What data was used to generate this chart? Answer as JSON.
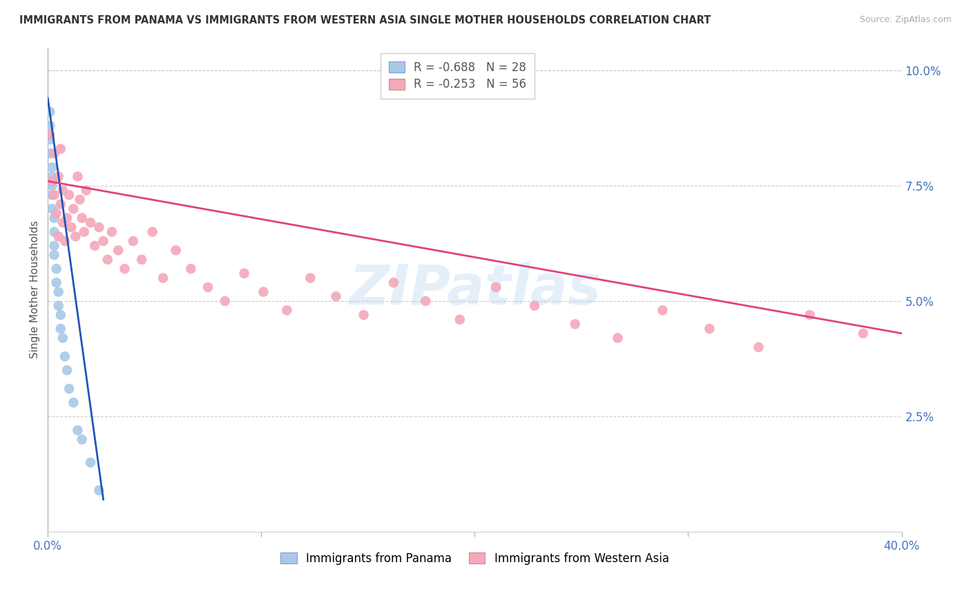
{
  "title": "IMMIGRANTS FROM PANAMA VS IMMIGRANTS FROM WESTERN ASIA SINGLE MOTHER HOUSEHOLDS CORRELATION CHART",
  "source": "Source: ZipAtlas.com",
  "ylabel": "Single Mother Households",
  "right_yticks": [
    "10.0%",
    "7.5%",
    "5.0%",
    "2.5%"
  ],
  "right_ytick_vals": [
    0.1,
    0.075,
    0.05,
    0.025
  ],
  "xlim": [
    0.0,
    0.4
  ],
  "ylim": [
    0.0,
    0.105
  ],
  "legend_r1": "R = -0.688",
  "legend_n1": "N = 28",
  "legend_r2": "R = -0.253",
  "legend_n2": "N = 56",
  "color_panama": "#a8c8e8",
  "color_western_asia": "#f4a8b8",
  "color_line_panama": "#2255bb",
  "color_line_western_asia": "#dd4477",
  "color_axis_labels": "#4472c4",
  "color_right_axis": "#4472c4",
  "watermark": "ZIPatlas",
  "panama_x": [
    0.001,
    0.001,
    0.001,
    0.001,
    0.002,
    0.002,
    0.002,
    0.002,
    0.002,
    0.003,
    0.003,
    0.003,
    0.003,
    0.004,
    0.004,
    0.005,
    0.005,
    0.006,
    0.006,
    0.007,
    0.008,
    0.009,
    0.01,
    0.012,
    0.014,
    0.016,
    0.02,
    0.024
  ],
  "panama_y": [
    0.091,
    0.088,
    0.085,
    0.082,
    0.079,
    0.077,
    0.075,
    0.073,
    0.07,
    0.068,
    0.065,
    0.062,
    0.06,
    0.057,
    0.054,
    0.052,
    0.049,
    0.047,
    0.044,
    0.042,
    0.038,
    0.035,
    0.031,
    0.028,
    0.022,
    0.02,
    0.015,
    0.009
  ],
  "wa_x": [
    0.001,
    0.002,
    0.003,
    0.003,
    0.004,
    0.005,
    0.005,
    0.006,
    0.006,
    0.007,
    0.007,
    0.008,
    0.009,
    0.01,
    0.011,
    0.012,
    0.013,
    0.014,
    0.015,
    0.016,
    0.017,
    0.018,
    0.02,
    0.022,
    0.024,
    0.026,
    0.028,
    0.03,
    0.033,
    0.036,
    0.04,
    0.044,
    0.049,
    0.054,
    0.06,
    0.067,
    0.075,
    0.083,
    0.092,
    0.101,
    0.112,
    0.123,
    0.135,
    0.148,
    0.162,
    0.177,
    0.193,
    0.21,
    0.228,
    0.247,
    0.267,
    0.288,
    0.31,
    0.333,
    0.357,
    0.382
  ],
  "wa_y": [
    0.086,
    0.076,
    0.082,
    0.073,
    0.069,
    0.077,
    0.064,
    0.083,
    0.071,
    0.074,
    0.067,
    0.063,
    0.068,
    0.073,
    0.066,
    0.07,
    0.064,
    0.077,
    0.072,
    0.068,
    0.065,
    0.074,
    0.067,
    0.062,
    0.066,
    0.063,
    0.059,
    0.065,
    0.061,
    0.057,
    0.063,
    0.059,
    0.065,
    0.055,
    0.061,
    0.057,
    0.053,
    0.05,
    0.056,
    0.052,
    0.048,
    0.055,
    0.051,
    0.047,
    0.054,
    0.05,
    0.046,
    0.053,
    0.049,
    0.045,
    0.042,
    0.048,
    0.044,
    0.04,
    0.047,
    0.043
  ],
  "panama_line_x": [
    0.0,
    0.026
  ],
  "panama_line_y": [
    0.094,
    0.007
  ],
  "wa_line_x": [
    0.0,
    0.4
  ],
  "wa_line_y": [
    0.076,
    0.043
  ],
  "x_tick_positions": [
    0.0,
    0.1,
    0.2,
    0.3,
    0.4
  ],
  "x_tick_labels": [
    "0.0%",
    "",
    "",
    "",
    "40.0%"
  ]
}
